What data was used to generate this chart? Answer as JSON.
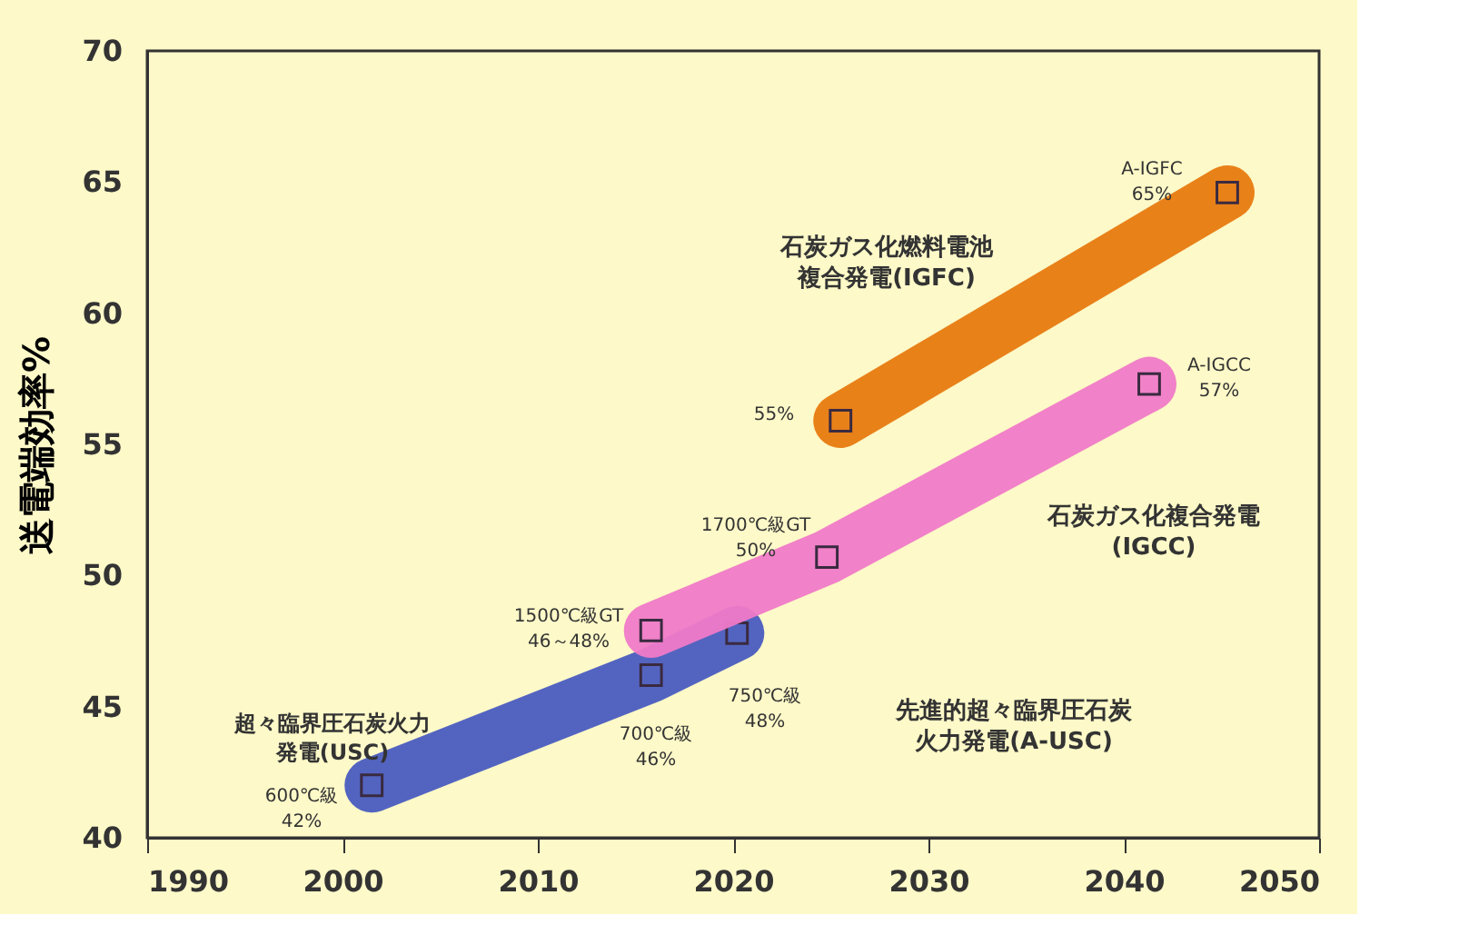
{
  "chart_data": {
    "type": "line",
    "ylabel": "送電端効率%",
    "xlim": [
      1990,
      2050
    ],
    "xticks": [
      1990,
      2000,
      2010,
      2020,
      2030,
      2040,
      2050
    ],
    "ylim": [
      40,
      70
    ],
    "yticks": [
      40,
      45,
      50,
      55,
      60,
      65,
      70
    ],
    "grid": false,
    "marker": "square",
    "series": [
      {
        "color": "#4a5cc0",
        "x": [
          2001.5,
          2015.8,
          2020.2
        ],
        "values": [
          42,
          46.2,
          47.8
        ]
      },
      {
        "color": "#f07ac8",
        "x": [
          2015.8,
          2024.8,
          2041.3
        ],
        "values": [
          47.9,
          50.7,
          57.3
        ]
      },
      {
        "color": "#e87a10",
        "x": [
          2025.5,
          2045.3
        ],
        "values": [
          55.9,
          64.6
        ]
      }
    ],
    "annotations": [
      "超々臨界圧石炭火力発電(USC)",
      "先進的超々臨界圧石炭火力発電(A-USC)",
      "石炭ガス化複合発電(IGCC)",
      "石炭ガス化燃料電池複合発電(IGFC)",
      "600℃級 42%",
      "700℃級 46%",
      "750℃級 48%",
      "1500℃級GT 46～48%",
      "1700℃級GT 50%",
      "A-IGCC 57%",
      "55%",
      "A-IGFC 65%"
    ]
  }
}
